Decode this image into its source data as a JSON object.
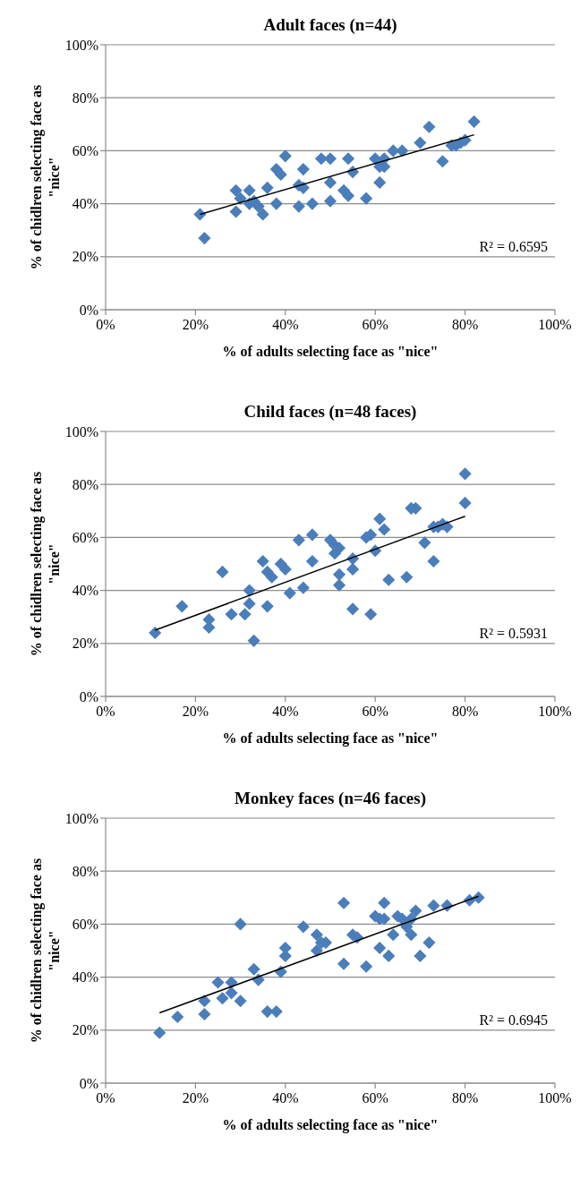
{
  "chart_data": [
    {
      "type": "scatter",
      "title": "Adult faces (n=44)",
      "xlabel": "% of adults selecting face as \"nice\"",
      "ylabel": "% of chidlren selecting face as \"nice\"",
      "xlim": [
        0,
        100
      ],
      "ylim": [
        0,
        100
      ],
      "xticks": [
        {
          "value": 0,
          "label": "0%"
        },
        {
          "value": 20,
          "label": "20%"
        },
        {
          "value": 40,
          "label": "40%"
        },
        {
          "value": 60,
          "label": "60%"
        },
        {
          "value": 80,
          "label": "80%"
        },
        {
          "value": 100,
          "label": "100%"
        }
      ],
      "yticks": [
        {
          "value": 0,
          "label": "0%"
        },
        {
          "value": 20,
          "label": "20%"
        },
        {
          "value": 40,
          "label": "40%"
        },
        {
          "value": 60,
          "label": "60%"
        },
        {
          "value": 80,
          "label": "80%"
        },
        {
          "value": 100,
          "label": "100%"
        }
      ],
      "grid": "y",
      "annotations": [
        "R² = 0.6595"
      ],
      "series": [
        {
          "color": "#4a7ebb",
          "marker": "diamond",
          "x": [
            21,
            22,
            29,
            29,
            30,
            32,
            32,
            33,
            34,
            35,
            36,
            38,
            38,
            39,
            40,
            43,
            43,
            44,
            44,
            46,
            48,
            50,
            50,
            50,
            53,
            54,
            54,
            55,
            58,
            60,
            61,
            61,
            62,
            62,
            64,
            66,
            70,
            72,
            75,
            77,
            78,
            79,
            80,
            82
          ],
          "values": [
            36,
            27,
            45,
            37,
            42,
            45,
            40,
            41,
            39,
            36,
            46,
            40,
            53,
            51,
            58,
            39,
            47,
            53,
            46,
            40,
            57,
            57,
            48,
            41,
            45,
            57,
            43,
            52,
            42,
            57,
            48,
            54,
            54,
            57,
            60,
            60,
            63,
            69,
            56,
            62,
            62,
            63,
            64,
            71
          ]
        },
        {
          "type": "line",
          "color": "#000000",
          "marker": "none",
          "x": [
            21,
            82
          ],
          "values": [
            36,
            66
          ]
        }
      ]
    },
    {
      "type": "scatter",
      "title": "Child faces (n=48 faces)",
      "xlabel": "% of adults selecting face as \"nice\"",
      "ylabel": "% of chidlren selecting face as \"nice\"",
      "xlim": [
        0,
        100
      ],
      "ylim": [
        0,
        100
      ],
      "xticks": [
        {
          "value": 0,
          "label": "0%"
        },
        {
          "value": 20,
          "label": "20%"
        },
        {
          "value": 40,
          "label": "40%"
        },
        {
          "value": 60,
          "label": "60%"
        },
        {
          "value": 80,
          "label": "80%"
        },
        {
          "value": 100,
          "label": "100%"
        }
      ],
      "yticks": [
        {
          "value": 0,
          "label": "0%"
        },
        {
          "value": 20,
          "label": "20%"
        },
        {
          "value": 40,
          "label": "40%"
        },
        {
          "value": 60,
          "label": "60%"
        },
        {
          "value": 80,
          "label": "80%"
        },
        {
          "value": 100,
          "label": "100%"
        }
      ],
      "grid": "y",
      "annotations": [
        "R² = 0.5931"
      ],
      "series": [
        {
          "color": "#4a7ebb",
          "marker": "diamond",
          "x": [
            11,
            17,
            23,
            23,
            26,
            28,
            31,
            32,
            32,
            33,
            35,
            36,
            37,
            36,
            39,
            40,
            41,
            43,
            44,
            46,
            46,
            50,
            51,
            51,
            52,
            52,
            52,
            55,
            55,
            55,
            58,
            59,
            59,
            60,
            61,
            62,
            63,
            67,
            68,
            69,
            71,
            73,
            74,
            75,
            76,
            73,
            80,
            80
          ],
          "values": [
            24,
            34,
            29,
            26,
            47,
            31,
            31,
            40,
            35,
            21,
            51,
            47,
            45,
            34,
            50,
            48,
            39,
            59,
            41,
            61,
            51,
            59,
            57,
            54,
            56,
            46,
            42,
            52,
            48,
            33,
            60,
            61,
            31,
            55,
            67,
            63,
            44,
            45,
            71,
            71,
            58,
            64,
            64,
            65,
            64,
            51,
            84,
            73
          ]
        },
        {
          "type": "line",
          "color": "#000000",
          "marker": "none",
          "x": [
            11,
            80
          ],
          "values": [
            25,
            68
          ]
        }
      ]
    },
    {
      "type": "scatter",
      "title": "Monkey faces (n=46 faces)",
      "xlabel": "% of adults selecting face as \"nice\"",
      "ylabel": "% of chidlren selecting face as \"nice\"",
      "xlim": [
        0,
        100
      ],
      "ylim": [
        0,
        100
      ],
      "xticks": [
        {
          "value": 0,
          "label": "0%"
        },
        {
          "value": 20,
          "label": "20%"
        },
        {
          "value": 40,
          "label": "40%"
        },
        {
          "value": 60,
          "label": "60%"
        },
        {
          "value": 80,
          "label": "80%"
        },
        {
          "value": 100,
          "label": "100%"
        }
      ],
      "yticks": [
        {
          "value": 0,
          "label": "0%"
        },
        {
          "value": 20,
          "label": "20%"
        },
        {
          "value": 40,
          "label": "40%"
        },
        {
          "value": 60,
          "label": "60%"
        },
        {
          "value": 80,
          "label": "80%"
        },
        {
          "value": 100,
          "label": "100%"
        }
      ],
      "grid": "y",
      "annotations": [
        "R² = 0.6945"
      ],
      "series": [
        {
          "color": "#4a7ebb",
          "marker": "diamond",
          "x": [
            12,
            16,
            22,
            22,
            25,
            26,
            28,
            28,
            30,
            30,
            33,
            34,
            36,
            38,
            39,
            40,
            40,
            44,
            47,
            47,
            48,
            49,
            53,
            53,
            55,
            56,
            58,
            60,
            61,
            62,
            62,
            61,
            63,
            64,
            65,
            66,
            67,
            68,
            68,
            69,
            70,
            72,
            73,
            76,
            81,
            83
          ],
          "values": [
            19,
            25,
            31,
            26,
            38,
            32,
            38,
            34,
            60,
            31,
            43,
            39,
            27,
            27,
            42,
            48,
            51,
            59,
            56,
            50,
            53,
            53,
            68,
            45,
            56,
            55,
            44,
            63,
            62,
            62,
            68,
            51,
            48,
            56,
            63,
            62,
            59,
            56,
            62,
            65,
            48,
            53,
            67,
            67,
            69,
            70
          ]
        },
        {
          "type": "line",
          "color": "#000000",
          "marker": "none",
          "x": [
            12,
            83
          ],
          "values": [
            26.5,
            70.5
          ]
        }
      ]
    }
  ]
}
